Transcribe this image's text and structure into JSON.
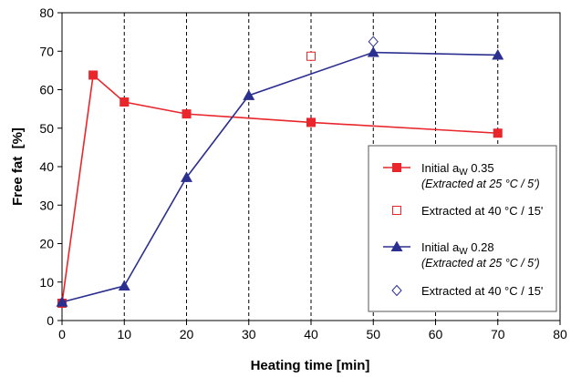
{
  "chart_data": {
    "type": "line",
    "xlabel": "Heating time [min]",
    "ylabel": "Free fat  [%]",
    "xlim": [
      0,
      80
    ],
    "ylim": [
      0,
      80
    ],
    "xticks": [
      "0",
      "10",
      "20",
      "30",
      "40",
      "50",
      "60",
      "70",
      "80"
    ],
    "yticks": [
      "0",
      "10",
      "20",
      "30",
      "40",
      "50",
      "60",
      "70",
      "80"
    ],
    "grid": "vertical-dashed",
    "legend_placement": "bottom-right",
    "colors": {
      "red": "#e8262b",
      "blue": "#2b2f8f"
    },
    "series": [
      {
        "key": "s1",
        "legend_main": "Initial a",
        "legend_sub": "W",
        "legend_value": " 0.35",
        "legend_note": "(Extracted at 25 °C / 5')",
        "color": "#e8262b",
        "marker": "filled-square",
        "x": [
          0,
          5,
          10,
          20,
          40,
          70
        ],
        "y": [
          4.5,
          63.8,
          56.8,
          53.7,
          51.5,
          48.7
        ]
      },
      {
        "key": "s2",
        "legend_main": "Extracted at 40 °C / 15'",
        "color": "#e8262b",
        "marker": "open-square",
        "x": [
          40
        ],
        "y": [
          68.7
        ]
      },
      {
        "key": "s3",
        "legend_main": "Initial a",
        "legend_sub": "W",
        "legend_value": " 0.28",
        "legend_note": "(Extracted at 25 °C / 5')",
        "color": "#2b2f8f",
        "marker": "filled-triangle",
        "x": [
          0,
          10,
          20,
          30,
          50,
          70
        ],
        "y": [
          4.8,
          9.0,
          37.2,
          58.5,
          69.7,
          69.0
        ]
      },
      {
        "key": "s4",
        "legend_main": "Extracted at 40 °C / 15'",
        "color": "#2b2f8f",
        "marker": "open-diamond",
        "x": [
          50
        ],
        "y": [
          72.5
        ]
      }
    ]
  }
}
